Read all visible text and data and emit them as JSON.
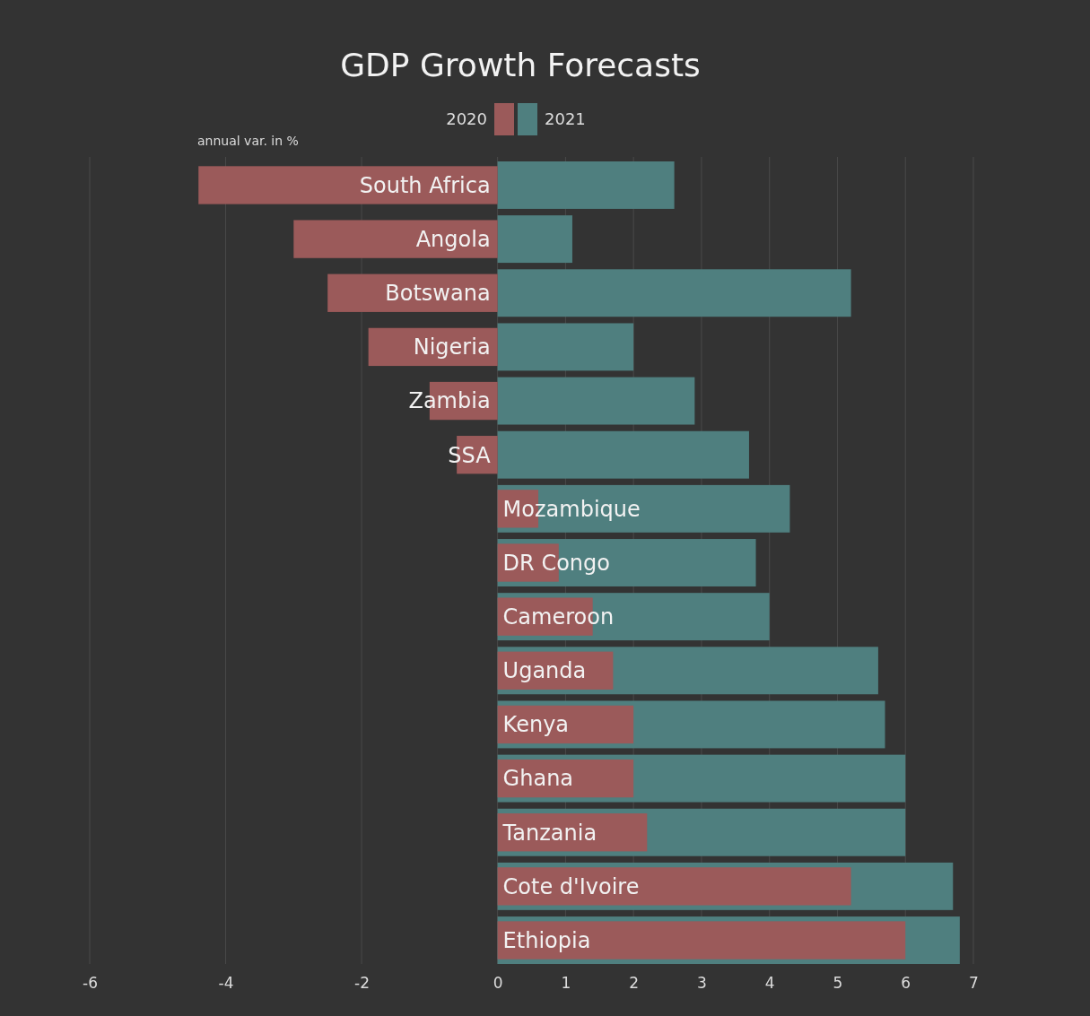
{
  "chart_data": {
    "type": "bar",
    "orientation": "horizontal",
    "title": "GDP Growth Forecasts",
    "xlabel": "annual var. in %",
    "categories": [
      "South  Africa",
      "Angola",
      "Botswana",
      "Nigeria",
      "Zambia",
      "SSA",
      "Mozambique",
      "DR Congo",
      "Cameroon",
      "Uganda",
      "Kenya",
      "Ghana",
      "Tanzania",
      "Cote d'Ivoire",
      "Ethiopia"
    ],
    "series": [
      {
        "name": "2020",
        "color": "#9b5a5a",
        "values": [
          -4.4,
          -3.0,
          -2.5,
          -1.9,
          -1.0,
          -0.6,
          0.6,
          0.9,
          1.4,
          1.7,
          2.0,
          2.0,
          2.2,
          5.2,
          6.0
        ]
      },
      {
        "name": "2021",
        "color": "#4f7f7f",
        "values": [
          2.6,
          1.1,
          5.2,
          2.0,
          2.9,
          3.7,
          4.3,
          3.8,
          4.0,
          5.6,
          5.7,
          6.0,
          6.0,
          6.7,
          6.8
        ]
      }
    ],
    "xlim": [
      -6,
      7
    ],
    "xticks": [
      -6,
      -4,
      -2,
      0,
      1,
      2,
      3,
      4,
      5,
      6,
      7
    ],
    "grid": "x",
    "legend": "top"
  }
}
